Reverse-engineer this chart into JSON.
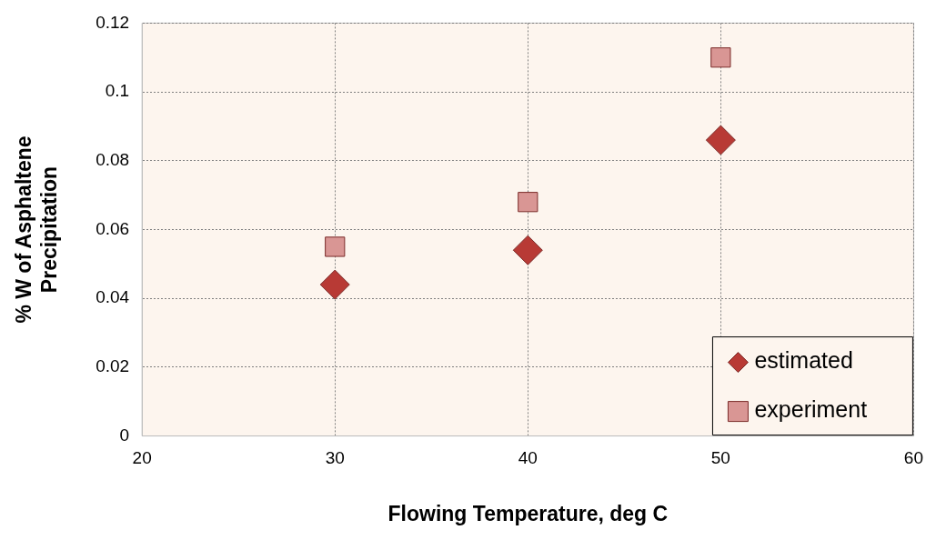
{
  "chart_data": {
    "type": "scatter",
    "xlabel": "Flowing Temperature, deg C",
    "ylabel": "% W of Asphaltene\nPrecipitation",
    "xlim": [
      20,
      60
    ],
    "xticks": [
      20,
      30,
      40,
      50,
      60
    ],
    "ylim": [
      0,
      0.12
    ],
    "yticks": [
      0,
      0.02,
      0.04,
      0.06,
      0.08,
      0.1,
      0.12
    ],
    "grid": true,
    "legend": "bottom right",
    "series": [
      {
        "name": "estimated",
        "color": "#b83a35",
        "marker": "diamond",
        "x": [
          30,
          40,
          50
        ],
        "values": [
          0.044,
          0.054,
          0.086
        ]
      },
      {
        "name": "experiment",
        "color": "#d99694",
        "marker": "square",
        "x": [
          30,
          40,
          50
        ],
        "values": [
          0.055,
          0.068,
          0.11
        ]
      }
    ]
  }
}
